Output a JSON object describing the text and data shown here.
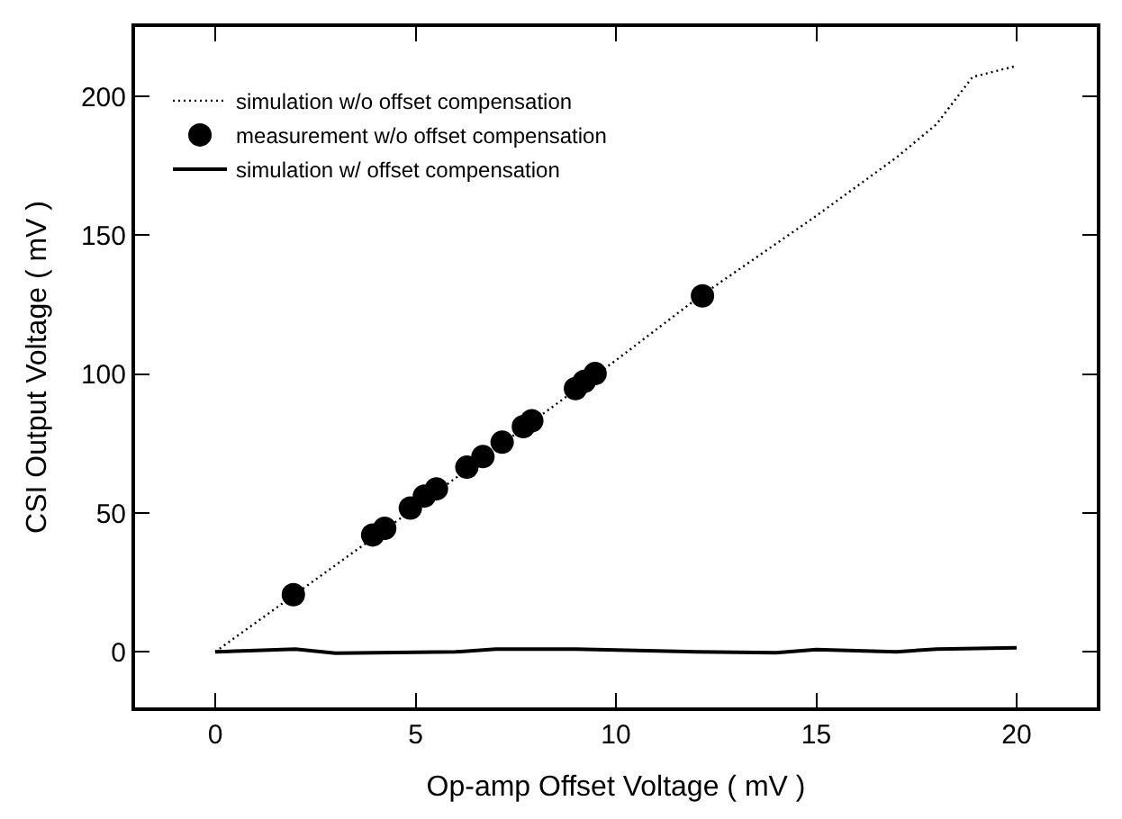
{
  "chart_data": {
    "type": "line",
    "xlabel": "Op-amp Offset Voltage ( mV )",
    "ylabel": "CSI Output Voltage ( mV )",
    "xlim": [
      -2,
      22
    ],
    "xticks": [
      0,
      5,
      10,
      15,
      20
    ],
    "ylim": [
      -20,
      225
    ],
    "yticks": [
      0,
      50,
      100,
      150,
      200
    ],
    "legend": "top left",
    "series": [
      {
        "name": "simulation w/o offset compensation",
        "line_style": "dotted",
        "marker": "none",
        "color": "#000000",
        "x": [
          0,
          5,
          10,
          12,
          15,
          17,
          18,
          18.9,
          20
        ],
        "values": [
          0,
          52,
          105,
          127,
          157,
          178,
          190,
          207,
          211
        ]
      },
      {
        "name": "measurement w/o offset compensation",
        "type": "scatter",
        "marker": "circle",
        "color": "#000000",
        "x": [
          1.95,
          3.93,
          4.23,
          4.87,
          5.22,
          5.52,
          6.28,
          6.68,
          7.16,
          7.69,
          7.9,
          8.99,
          9.21,
          9.48,
          12.16
        ],
        "values": [
          20.6,
          42.1,
          44.5,
          51.8,
          56.1,
          58.7,
          66.5,
          70.3,
          75.5,
          81.1,
          83.2,
          94.8,
          97.4,
          100.2,
          128.2
        ]
      },
      {
        "name": "simulation w/ offset compensation",
        "line_style": "solid",
        "marker": "none",
        "color": "#000000",
        "x": [
          0,
          2,
          3,
          6,
          7,
          9,
          12,
          14,
          15,
          17,
          18,
          20
        ],
        "values": [
          0,
          1,
          -0.5,
          0,
          1,
          1,
          0,
          -0.3,
          0.8,
          0,
          1,
          1.5
        ]
      }
    ]
  }
}
